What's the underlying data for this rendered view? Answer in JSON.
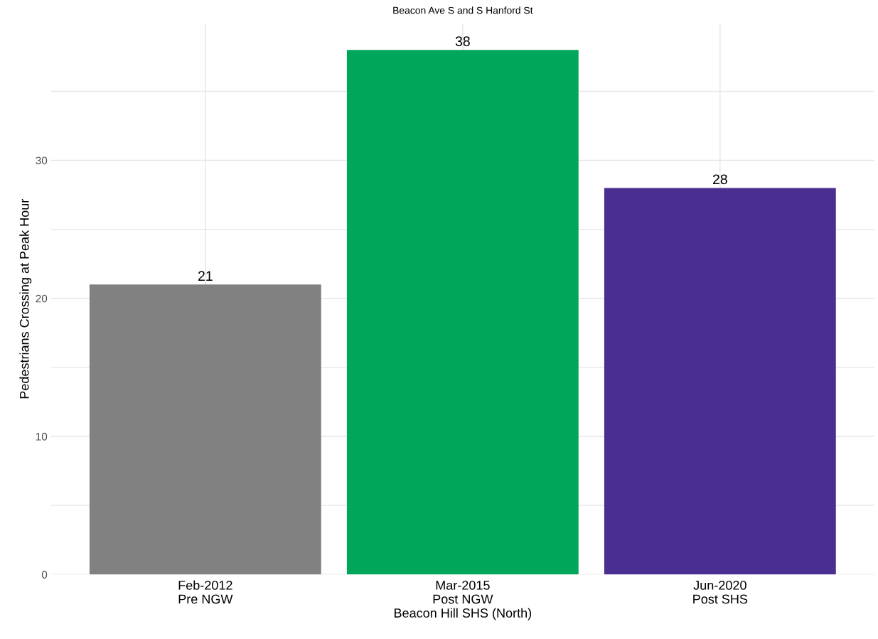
{
  "chart_data": {
    "type": "bar",
    "title": "Beacon Ave S and S Hanford St",
    "xlabel": "Beacon Hill SHS (North)",
    "ylabel": "Pedestrians Crossing at Peak Hour",
    "categories": [
      "Feb-2012\nPre NGW",
      "Mar-2015\nPost NGW",
      "Jun-2020\nPost SHS"
    ],
    "values": [
      21,
      38,
      28
    ],
    "colors": [
      "#818181",
      "#00a65a",
      "#4b2e91"
    ],
    "ylim": [
      0,
      39.9
    ],
    "yticks": [
      0,
      {
        "value": 5,
        "label": null
      },
      10,
      {
        "value": 15,
        "label": null
      },
      20,
      {
        "value": 25,
        "label": null
      },
      30,
      {
        "value": 35,
        "label": null
      }
    ],
    "grid": true,
    "data_labels": true
  }
}
